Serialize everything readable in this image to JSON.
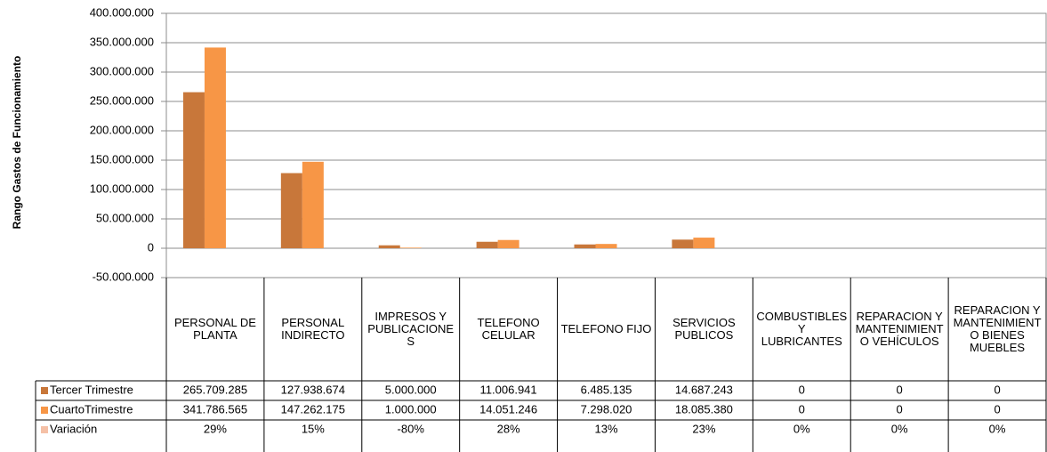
{
  "chart_data": {
    "type": "bar",
    "y_label": "Rango  Gastos de Funcionamiento",
    "categories": [
      "PERSONAL DE PLANTA",
      "PERSONAL INDIRECTO",
      "IMPRESOS Y PUBLICACIONES",
      "TELEFONO CELULAR",
      "TELEFONO FIJO",
      "SERVICIOS PUBLICOS",
      "COMBUSTIBLES Y LUBRICANTES",
      "REPARACION Y MANTENIMIENTO VEHÍCULOS",
      "REPARACION Y MANTENIMIENTO BIENES MUEBLES"
    ],
    "series": [
      {
        "name": "Tercer Trimestre",
        "color": "#c8773a",
        "values": [
          265709285,
          127938674,
          5000000,
          11006941,
          6485135,
          14687243,
          0,
          0,
          0
        ],
        "value_labels": [
          "265.709.285",
          "127.938.674",
          "5.000.000",
          "11.006.941",
          "6.485.135",
          "14.687.243",
          "0",
          "0",
          "0"
        ]
      },
      {
        "name": "CuartoTrimestre",
        "color": "#f79646",
        "values": [
          341786565,
          147262175,
          1000000,
          14051246,
          7298020,
          18085380,
          0,
          0,
          0
        ],
        "value_labels": [
          "341.786.565",
          "147.262.175",
          "1.000.000",
          "14.051.246",
          "7.298.020",
          "18.085.380",
          "0",
          "0",
          "0"
        ]
      },
      {
        "name": "Variación",
        "color": "#f5c0a6",
        "values": [
          29,
          15,
          -80,
          28,
          13,
          23,
          0,
          0,
          0
        ],
        "value_labels": [
          "29%",
          "15%",
          "-80%",
          "28%",
          "13%",
          "23%",
          "0%",
          "0%",
          "0%"
        ]
      }
    ],
    "ylim": [
      -50000000,
      400000000
    ],
    "yticks": [
      {
        "value": -50000000,
        "label": "-50.000.000"
      },
      0,
      {
        "value": 50000000,
        "label": "50.000.000"
      },
      {
        "value": 100000000,
        "label": "100.000.000"
      },
      {
        "value": 150000000,
        "label": "150.000.000"
      },
      {
        "value": 200000000,
        "label": "200.000.000"
      },
      {
        "value": 250000000,
        "label": "250.000.000"
      },
      {
        "value": 300000000,
        "label": "300.000.000"
      },
      {
        "value": 350000000,
        "label": "350.000.000"
      },
      {
        "value": 400000000,
        "label": "400.000.000"
      }
    ],
    "grid": true
  }
}
